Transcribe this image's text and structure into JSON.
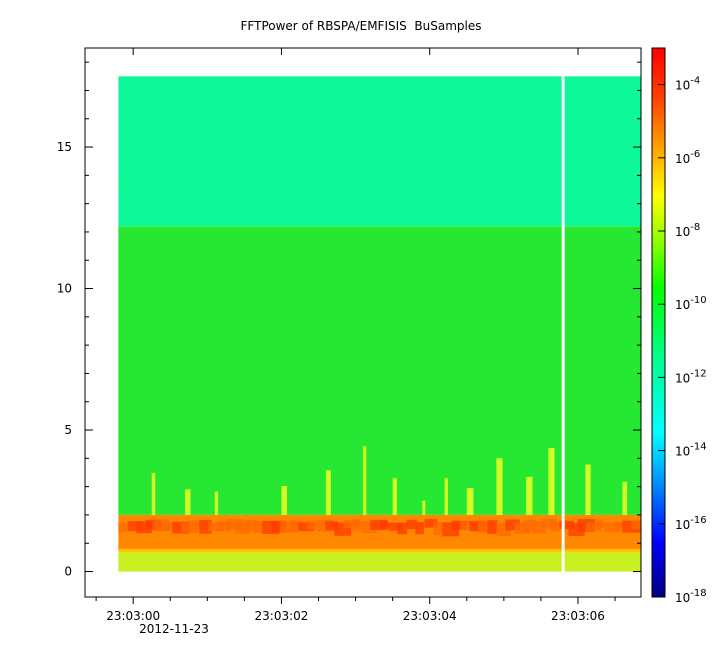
{
  "chart_data": {
    "type": "heatmap",
    "title": "FFTPower of RBSPA/EMFISIS  BuSamples",
    "xlabel": "",
    "ylabel": "",
    "x_tick_labels": [
      "23:03:00",
      "23:03:02",
      "23:03:04",
      "23:03:06"
    ],
    "x_date_label": "2012-11-23",
    "x_range_seconds": [
      -0.65,
      6.85
    ],
    "x_data_range_seconds": [
      -0.2,
      6.85
    ],
    "gap_at_seconds": 5.8,
    "y_ticks": [
      0,
      5,
      10,
      15
    ],
    "ylim": [
      -0.9,
      18.5
    ],
    "y_data_range": [
      0,
      17.5
    ],
    "colorbar": {
      "scale": "log",
      "range": [
        1e-18,
        0.001
      ],
      "tick_bases": [
        "10",
        "10",
        "10",
        "10",
        "10",
        "10",
        "10",
        "10"
      ],
      "tick_exponents": [
        "-18",
        "-16",
        "-14",
        "-12",
        "-10",
        "-8",
        "-6",
        "-4"
      ],
      "colormap": [
        "#000080",
        "#0000ff",
        "#00a0ff",
        "#00ffff",
        "#00ff80",
        "#00ff00",
        "#80ff00",
        "#ffff00",
        "#ffa000",
        "#ff4000",
        "#ff0000"
      ]
    },
    "bands": [
      {
        "y_range": [
          12.2,
          17.5
        ],
        "level_exponent": -12.5,
        "color": "#10f898"
      },
      {
        "y_range": [
          2.0,
          12.2
        ],
        "level_exponent": -10.5,
        "color": "#28e830"
      },
      {
        "y_range": [
          0.7,
          2.0
        ],
        "level_exponent": -7.5,
        "color": "#ff8800"
      },
      {
        "y_range": [
          0,
          0.7
        ],
        "level_exponent": -9.5,
        "color": "#c8f020"
      }
    ],
    "grid": false,
    "legend": "colorbar-right"
  }
}
